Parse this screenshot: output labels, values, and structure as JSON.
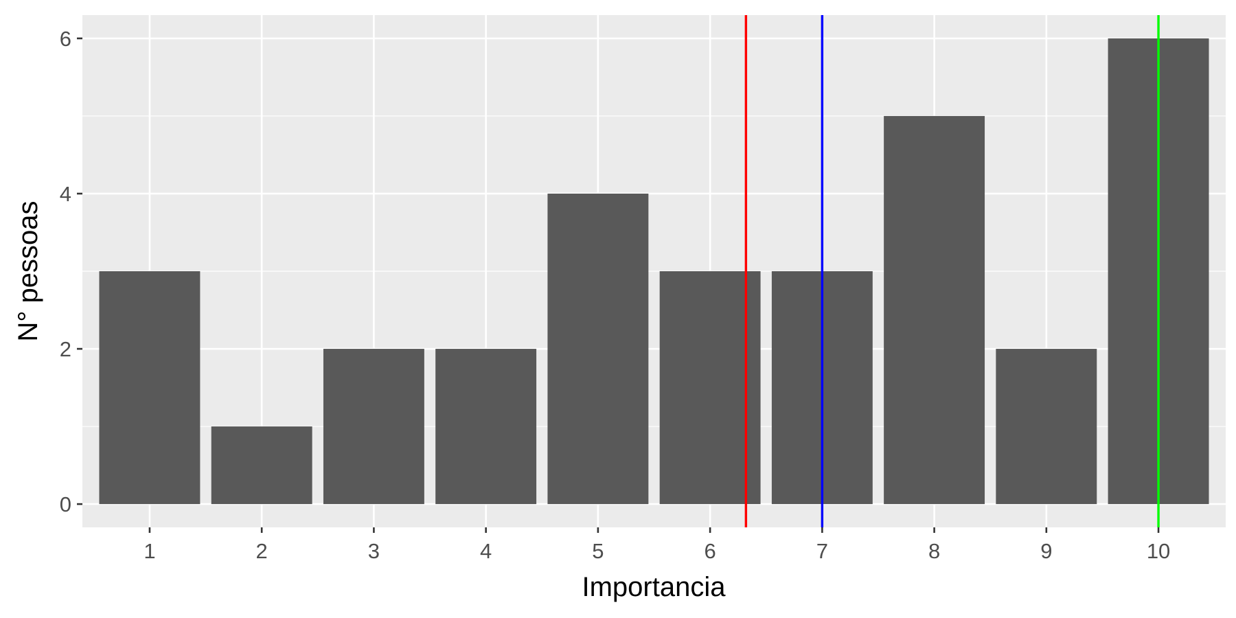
{
  "chart_data": {
    "type": "bar",
    "categories": [
      "1",
      "2",
      "3",
      "4",
      "5",
      "6",
      "7",
      "8",
      "9",
      "10"
    ],
    "values": [
      3,
      1,
      2,
      2,
      4,
      3,
      3,
      5,
      2,
      6
    ],
    "xlabel": "Importancia",
    "ylabel": "N° pessoas",
    "xlim": [
      0.4,
      10.6
    ],
    "ylim": [
      -0.3,
      6.3
    ],
    "y_ticks": [
      0,
      2,
      4,
      6
    ],
    "grid": true,
    "vlines": [
      {
        "x": 6.32,
        "color": "#ff0000"
      },
      {
        "x": 7,
        "color": "#0000ff"
      },
      {
        "x": 10,
        "color": "#00ff00"
      }
    ],
    "colors": {
      "bar": "#595959",
      "panel": "#ebebeb",
      "grid": "#ffffff"
    }
  }
}
